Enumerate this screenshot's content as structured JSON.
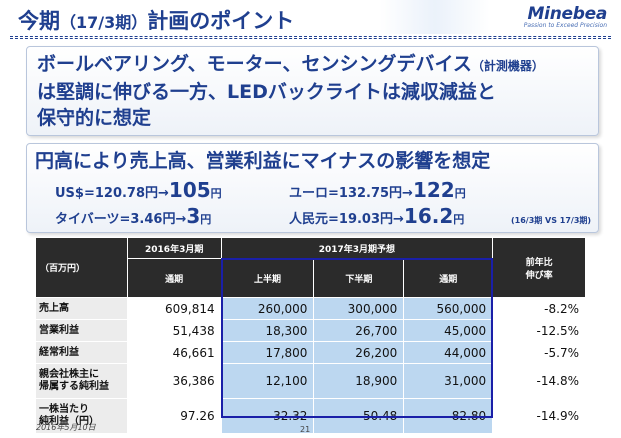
{
  "header": {
    "title_main": "今期",
    "title_paren": "（17/3期）",
    "title_tail": "計画のポイント",
    "logo_brand": "Minebea",
    "logo_tagline": "Passion to Exceed Precision"
  },
  "points": {
    "line1": "ボールベアリング、モーター、センシングデバイス",
    "line1_small": "（計測機器）",
    "line2": "は堅調に伸びる一方、LEDバックライトは減収減益と",
    "line3": "保守的に想定"
  },
  "fx": {
    "heading": "円高により売上高、営業利益にマイナスの影響を想定",
    "usd_rate": "US$=120.78円→",
    "usd_new": "105",
    "usd_unit": "円",
    "eur_rate": "ユーロ=132.75円→",
    "eur_new": "122",
    "eur_unit": "円",
    "thb_rate": "タイバーツ=3.46円→",
    "thb_new": "3",
    "thb_unit": "円",
    "cny_rate": "人民元=19.03円→",
    "cny_new": "16.2",
    "cny_unit": "円",
    "note": "(16/3期 VS 17/3期)"
  },
  "table": {
    "unit_label": "（百万円）",
    "col_2016": "2016年3月期",
    "col_2017": "2017年3月期予想",
    "sub_full_2016": "通期",
    "sub_h1": "上半期",
    "sub_h2": "下半期",
    "sub_full_2017": "通期",
    "yoy_line1": "前年比",
    "yoy_line2": "伸び率",
    "rows": [
      {
        "label": "売上高",
        "fy2016": "609,814",
        "h1": "260,000",
        "h2": "300,000",
        "fy2017": "560,000",
        "yoy": "-8.2%"
      },
      {
        "label": "営業利益",
        "fy2016": "51,438",
        "h1": "18,300",
        "h2": "26,700",
        "fy2017": "45,000",
        "yoy": "-12.5%"
      },
      {
        "label": "経常利益",
        "fy2016": "46,661",
        "h1": "17,800",
        "h2": "26,200",
        "fy2017": "44,000",
        "yoy": "-5.7%"
      },
      {
        "label": "親会社株主に帰属する純利益",
        "label_l1": "親会社株主に",
        "label_l2": "帰属する純利益",
        "fy2016": "36,386",
        "h1": "12,100",
        "h2": "18,900",
        "fy2017": "31,000",
        "yoy": "-14.8%"
      },
      {
        "label": "一株当たり純利益（円）",
        "label_l1": "一株当たり",
        "label_l2": "純利益（円）",
        "fy2016": "97.26",
        "h1": "32.32",
        "h2": "50.48",
        "fy2017": "82.80",
        "yoy": "-14.9%"
      }
    ]
  },
  "footer": {
    "date": "2016年5月10日",
    "page": "21"
  },
  "colors": {
    "brand": "#1f3f8f",
    "plan_highlight": "#bcd7f0",
    "plan_border": "#1a1fa8"
  }
}
